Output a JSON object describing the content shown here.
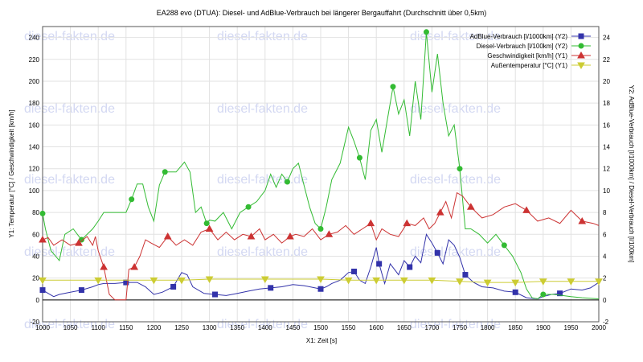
{
  "chart_data": {
    "type": "line",
    "title": "EA288 evo (DTUA): Diesel- und AdBlue-Verbrauch bei längerer Bergauffahrt (Durchschnitt über 0,5km)",
    "xlabel": "X1: Zeit [s]",
    "ylabel_left": "Y1: Temperatur [°C] / Geschwindigkeit [km/h]",
    "ylabel_right": "Y2: AdBlue-Verbrauch [l/1000km] / Diesel-Verbrauch [l/100km]",
    "xlim": [
      1000,
      2000
    ],
    "ylim_left": [
      -20,
      250
    ],
    "ylim_right": [
      -2,
      25
    ],
    "x_ticks": [
      1000,
      1050,
      1100,
      1150,
      1200,
      1250,
      1300,
      1350,
      1400,
      1450,
      1500,
      1550,
      1600,
      1650,
      1700,
      1750,
      1800,
      1850,
      1900,
      1950,
      2000
    ],
    "y_left_ticks": [
      -20,
      0,
      20,
      40,
      60,
      80,
      100,
      120,
      140,
      160,
      180,
      200,
      220,
      240
    ],
    "y_right_ticks": [
      -2,
      0,
      2,
      4,
      6,
      8,
      10,
      12,
      14,
      16,
      18,
      20,
      22,
      24
    ],
    "grid": true,
    "legend_position": "top-right",
    "watermark": "diesel-fakten.de",
    "series": [
      {
        "name": "AdBlue-Verbrauch [l/1000km] (Y2)",
        "axis": "right",
        "color": "#3333aa",
        "marker": "square",
        "x": [
          1000,
          1010,
          1020,
          1030,
          1050,
          1070,
          1090,
          1100,
          1110,
          1130,
          1150,
          1170,
          1185,
          1200,
          1215,
          1235,
          1250,
          1260,
          1270,
          1290,
          1310,
          1330,
          1350,
          1370,
          1390,
          1410,
          1430,
          1450,
          1470,
          1490,
          1500,
          1510,
          1520,
          1535,
          1550,
          1560,
          1570,
          1580,
          1590,
          1600,
          1605,
          1615,
          1625,
          1640,
          1650,
          1660,
          1670,
          1680,
          1690,
          1700,
          1710,
          1720,
          1730,
          1740,
          1750,
          1760,
          1775,
          1790,
          1810,
          1830,
          1850,
          1870,
          1890,
          1900,
          1915,
          1930,
          1950,
          1970,
          1985,
          2000
        ],
        "y": [
          0.9,
          0.6,
          0.3,
          0.5,
          0.7,
          0.9,
          1.2,
          1.4,
          1.5,
          1.5,
          1.6,
          1.6,
          1.2,
          0.5,
          0.7,
          1.2,
          2.5,
          2.3,
          1.2,
          0.6,
          0.5,
          0.4,
          0.6,
          0.8,
          1.0,
          1.1,
          1.2,
          1.4,
          1.3,
          1.1,
          1.0,
          1.2,
          1.5,
          1.8,
          2.5,
          2.6,
          1.8,
          1.5,
          3.0,
          4.8,
          3.3,
          1.5,
          3.3,
          2.3,
          3.6,
          3.0,
          4.0,
          3.4,
          6.0,
          5.2,
          4.3,
          3.3,
          5.5,
          5.0,
          3.9,
          2.3,
          1.6,
          1.2,
          1.1,
          0.8,
          0.7,
          0.2,
          0.1,
          0.3,
          0.5,
          0.6,
          1.0,
          0.9,
          1.1,
          1.6
        ]
      },
      {
        "name": "Diesel-Verbrauch [l/100km] (Y2)",
        "axis": "right",
        "color": "#33bb33",
        "marker": "circle",
        "x": [
          1000,
          1005,
          1015,
          1030,
          1040,
          1055,
          1070,
          1090,
          1100,
          1110,
          1130,
          1150,
          1160,
          1170,
          1180,
          1190,
          1200,
          1210,
          1220,
          1240,
          1255,
          1265,
          1275,
          1285,
          1295,
          1300,
          1310,
          1325,
          1340,
          1355,
          1370,
          1385,
          1400,
          1410,
          1420,
          1430,
          1440,
          1450,
          1460,
          1470,
          1480,
          1490,
          1500,
          1510,
          1520,
          1535,
          1550,
          1560,
          1570,
          1580,
          1590,
          1600,
          1610,
          1620,
          1630,
          1640,
          1650,
          1660,
          1670,
          1680,
          1690,
          1700,
          1710,
          1720,
          1730,
          1740,
          1750,
          1760,
          1770,
          1785,
          1800,
          1815,
          1830,
          1845,
          1860,
          1870,
          1880,
          1890,
          1900,
          1920,
          1950,
          1970,
          2000
        ],
        "y": [
          7.9,
          6.5,
          4.5,
          3.6,
          6.0,
          6.5,
          5.5,
          6.5,
          7.2,
          8.0,
          8.0,
          8.0,
          9.2,
          10.6,
          10.6,
          8.5,
          7.2,
          10.5,
          11.7,
          11.7,
          12.6,
          11.7,
          8.0,
          8.5,
          7.0,
          7.3,
          7.2,
          8.0,
          6.5,
          8.0,
          8.5,
          9.0,
          10.0,
          11.5,
          10.3,
          11.5,
          10.8,
          12.0,
          12.5,
          10.5,
          8.5,
          7.0,
          6.5,
          8.5,
          11.0,
          12.5,
          15.8,
          14.5,
          13.0,
          11.0,
          15.5,
          16.5,
          13.5,
          16.5,
          19.5,
          17.0,
          18.3,
          15.0,
          20.0,
          16.5,
          24.5,
          19.0,
          22.5,
          18.0,
          15.0,
          16.0,
          12.0,
          6.5,
          6.5,
          6.0,
          5.2,
          6.0,
          5.0,
          4.0,
          2.5,
          1.0,
          0.2,
          0.1,
          0.5,
          0.5,
          0.3,
          0.2,
          0.1
        ]
      },
      {
        "name": "Geschwindigkeit [km/h] (Y1)",
        "axis": "left",
        "color": "#cc3333",
        "marker": "triangle",
        "x": [
          1000,
          1010,
          1020,
          1035,
          1050,
          1065,
          1080,
          1090,
          1095,
          1100,
          1110,
          1120,
          1130,
          1150,
          1155,
          1165,
          1175,
          1185,
          1195,
          1210,
          1225,
          1240,
          1255,
          1270,
          1285,
          1300,
          1315,
          1330,
          1345,
          1360,
          1375,
          1390,
          1400,
          1415,
          1430,
          1445,
          1455,
          1470,
          1485,
          1500,
          1515,
          1530,
          1545,
          1560,
          1575,
          1590,
          1600,
          1610,
          1625,
          1640,
          1655,
          1670,
          1685,
          1695,
          1705,
          1715,
          1725,
          1735,
          1745,
          1755,
          1770,
          1790,
          1810,
          1830,
          1850,
          1870,
          1890,
          1910,
          1930,
          1950,
          1970,
          1990,
          2000
        ],
        "y": [
          55,
          57,
          50,
          55,
          50,
          52,
          58,
          50,
          58,
          45,
          30,
          5,
          0,
          0,
          28,
          30,
          40,
          55,
          52,
          48,
          58,
          50,
          55,
          50,
          62,
          65,
          55,
          62,
          55,
          60,
          58,
          65,
          55,
          60,
          52,
          58,
          60,
          58,
          65,
          55,
          60,
          62,
          68,
          60,
          65,
          70,
          55,
          65,
          60,
          58,
          70,
          68,
          75,
          65,
          70,
          80,
          90,
          75,
          98,
          95,
          85,
          75,
          78,
          85,
          88,
          82,
          72,
          75,
          70,
          82,
          72,
          70,
          68
        ]
      },
      {
        "name": "Außentemperatur [°C] (Y1)",
        "axis": "left",
        "color": "#cccc33",
        "marker": "triangle-down",
        "x": [
          1000,
          1100,
          1200,
          1250,
          1300,
          1400,
          1500,
          1550,
          1600,
          1650,
          1700,
          1750,
          1800,
          1850,
          1900,
          1950,
          2000
        ],
        "y": [
          18,
          18,
          18,
          18,
          19,
          19,
          19,
          18,
          18,
          18,
          18,
          17,
          16,
          16,
          17,
          17,
          17
        ]
      }
    ]
  }
}
